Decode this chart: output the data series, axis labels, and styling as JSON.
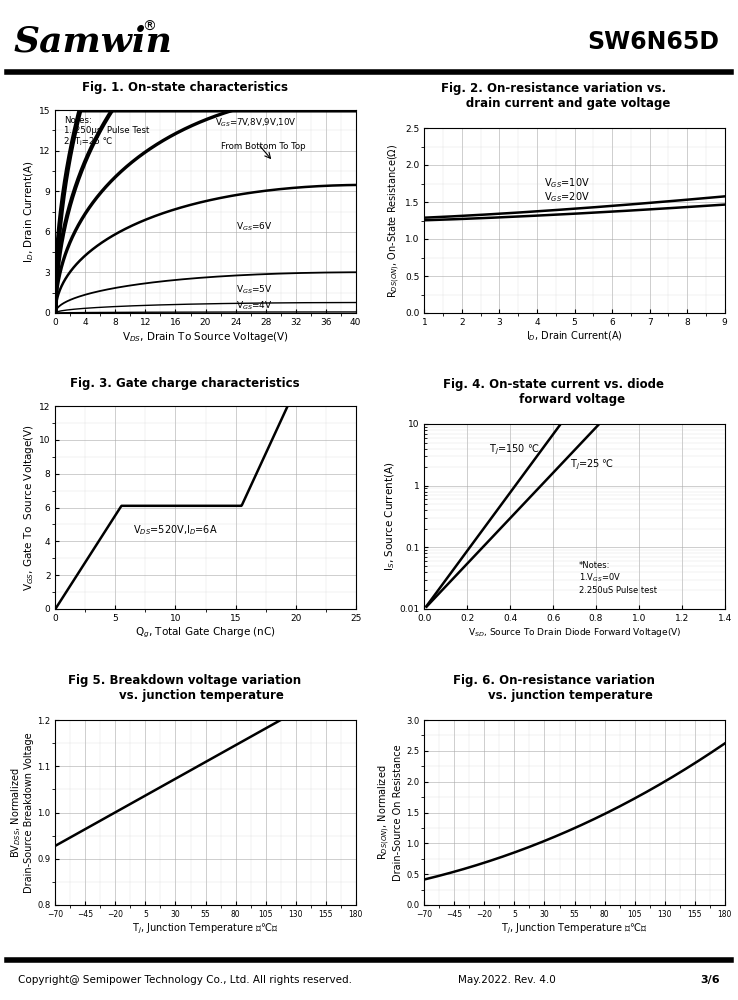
{
  "header_part": "SW6N65D",
  "footer_text": "Copyright@ Semipower Technology Co., Ltd. All rights reserved.",
  "footer_rev": "May.2022. Rev. 4.0",
  "footer_page": "3/6",
  "fig1_title": "Fig. 1. On-state characteristics",
  "fig1_xlabel": "V$_{DS}$, Drain To Source Voltage(V)",
  "fig1_ylabel": "I$_{D}$, Drain Current(A)",
  "fig1_xlim": [
    0,
    40
  ],
  "fig1_ylim": [
    0,
    15
  ],
  "fig1_xticks": [
    0,
    4,
    8,
    12,
    16,
    20,
    24,
    28,
    32,
    36,
    40
  ],
  "fig1_yticks": [
    0,
    3,
    6,
    9,
    12,
    15
  ],
  "fig2_title": "Fig. 2. On-resistance variation vs.\n       drain current and gate voltage",
  "fig2_xlabel": "I$_{D}$, Drain Current(A)",
  "fig2_ylabel": "R$_{DS(ON)}$, On-State Resistance(Ω)",
  "fig2_xlim": [
    1,
    9
  ],
  "fig2_ylim": [
    0.0,
    2.5
  ],
  "fig2_xticks": [
    1,
    2,
    3,
    4,
    5,
    6,
    7,
    8,
    9
  ],
  "fig2_yticks": [
    0.0,
    0.5,
    1.0,
    1.5,
    2.0,
    2.5
  ],
  "fig3_title": "Fig. 3. Gate charge characteristics",
  "fig3_xlabel": "Q$_{g}$, Total Gate Charge (nC)",
  "fig3_ylabel": "V$_{GS}$, Gate To  Source Voltage(V)",
  "fig3_xlim": [
    0,
    25
  ],
  "fig3_ylim": [
    0,
    12
  ],
  "fig3_xticks": [
    0,
    5,
    10,
    15,
    20,
    25
  ],
  "fig3_yticks": [
    0,
    2,
    4,
    6,
    8,
    10,
    12
  ],
  "fig4_title": "Fig. 4. On-state current vs. diode\n         forward voltage",
  "fig4_xlabel": "V$_{SD}$, Source To Drain Diode Forward Voltage(V)",
  "fig4_ylabel": "I$_{S}$, Source Current(A)",
  "fig4_xlim": [
    0.0,
    1.4
  ],
  "fig4_ylim_log": [
    0.01,
    10
  ],
  "fig4_xticks": [
    0.0,
    0.2,
    0.4,
    0.6,
    0.8,
    1.0,
    1.2,
    1.4
  ],
  "fig5_title": "Fig 5. Breakdown voltage variation\n        vs. junction temperature",
  "fig5_xlabel": "T$_{j}$, Junction Temperature （℃）",
  "fig5_ylabel": "BV$_{DSS}$, Normalized\nDrain-Source Breakdown Voltage",
  "fig5_xlim": [
    -70,
    180
  ],
  "fig5_ylim": [
    0.8,
    1.2
  ],
  "fig5_xticks": [
    -70,
    -45,
    -20,
    5,
    30,
    55,
    80,
    105,
    130,
    155,
    180
  ],
  "fig5_yticks": [
    0.8,
    0.9,
    1.0,
    1.1,
    1.2
  ],
  "fig6_title": "Fig. 6. On-resistance variation\n        vs. junction temperature",
  "fig6_xlabel": "T$_{j}$, Junction Temperature （℃）",
  "fig6_ylabel": "R$_{DS(ON)}$, Normalized\nDrain-Source On Resistance",
  "fig6_xlim": [
    -70,
    180
  ],
  "fig6_ylim": [
    0.0,
    3.0
  ],
  "fig6_xticks": [
    -70,
    -45,
    -20,
    5,
    30,
    55,
    80,
    105,
    130,
    155,
    180
  ],
  "fig6_yticks": [
    0.0,
    0.5,
    1.0,
    1.5,
    2.0,
    2.5,
    3.0
  ]
}
